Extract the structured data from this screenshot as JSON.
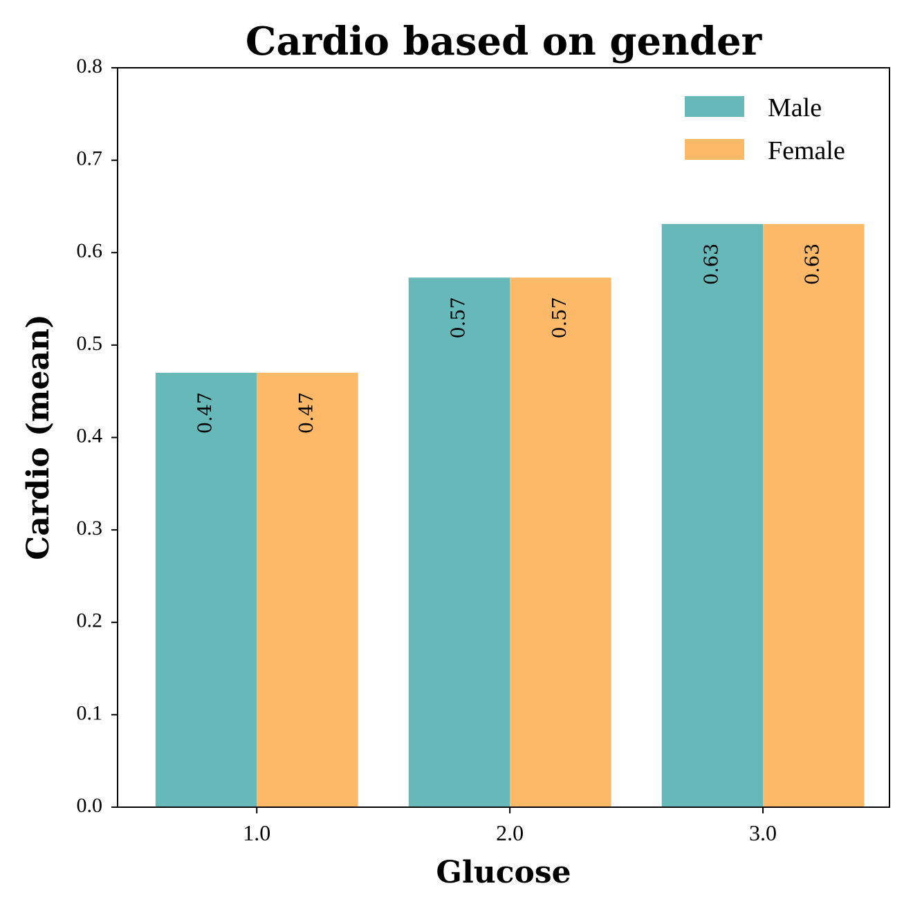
{
  "colors": {
    "male": "#67b8b8",
    "female": "#fdb967",
    "axis": "#000000",
    "background": "#ffffff"
  },
  "chart_data": {
    "type": "bar",
    "title": "Cardio based on gender",
    "xlabel": "Glucose",
    "ylabel": "Cardio (mean)",
    "categories": [
      "1.0",
      "2.0",
      "3.0"
    ],
    "series": [
      {
        "name": "Male",
        "values": [
          0.47,
          0.573,
          0.631
        ],
        "labels": [
          "0.47",
          "0.57",
          "0.63"
        ]
      },
      {
        "name": "Female",
        "values": [
          0.47,
          0.573,
          0.631
        ],
        "labels": [
          "0.47",
          "0.57",
          "0.63"
        ]
      }
    ],
    "ylim": [
      0,
      0.8
    ],
    "yticks": [
      "0.0",
      "0.1",
      "0.2",
      "0.3",
      "0.4",
      "0.5",
      "0.6",
      "0.7",
      "0.8"
    ],
    "legend_position": "top-right",
    "grid": false
  }
}
